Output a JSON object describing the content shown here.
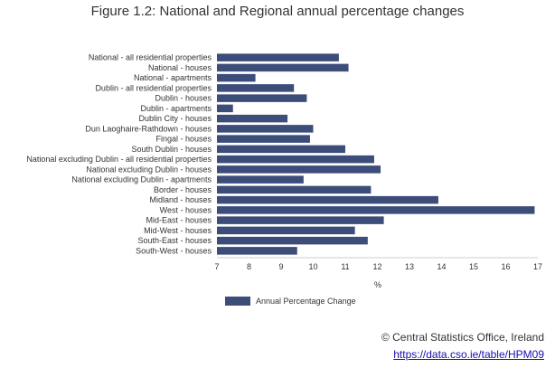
{
  "chart_data": {
    "type": "bar",
    "orientation": "horizontal",
    "title": "Figure 1.2: National and Regional annual percentage changes",
    "xlabel": "%",
    "xlim": [
      7,
      17
    ],
    "x_ticks": [
      "7",
      "8",
      "9",
      "10",
      "11",
      "12",
      "13",
      "14",
      "15",
      "16",
      "17"
    ],
    "grid": false,
    "legend_position": "bottom-left",
    "bar_color": "#3d4d7a",
    "categories": [
      "National - all residential properties",
      "National - houses",
      "National - apartments",
      "Dublin - all residential properties",
      "Dublin - houses",
      "Dublin - apartments",
      "Dublin City - houses",
      "Dun Laoghaire-Rathdown - houses",
      "Fingal - houses",
      "South Dublin - houses",
      "National excluding Dublin - all residential properties",
      "National excluding Dublin - houses",
      "National excluding Dublin - apartments",
      "Border - houses",
      "Midland - houses",
      "West - houses",
      "Mid-East - houses",
      "Mid-West - houses",
      "South-East - houses",
      "South-West - houses"
    ],
    "series": [
      {
        "name": "Annual Percentage Change",
        "values": [
          10.8,
          11.1,
          8.2,
          9.4,
          9.8,
          7.5,
          9.2,
          10.0,
          9.9,
          11.0,
          11.9,
          12.1,
          9.7,
          11.8,
          13.9,
          16.9,
          12.2,
          11.3,
          11.7,
          9.5
        ]
      }
    ]
  },
  "footer": {
    "copyright": "© Central Statistics Office, Ireland",
    "link": "https://data.cso.ie/table/HPM09"
  }
}
